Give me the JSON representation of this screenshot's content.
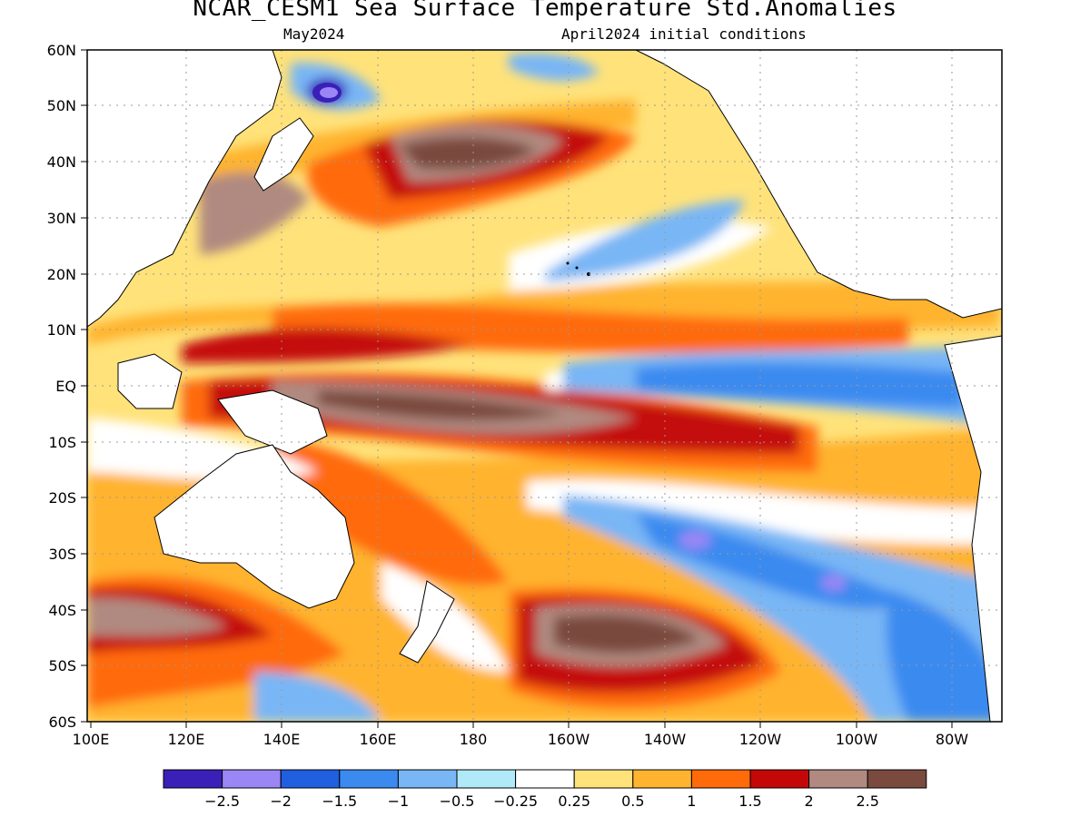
{
  "title": "NCAR_CESM1 Sea Surface Temperature Std.Anomalies",
  "subtitle_left": "May2024",
  "subtitle_right": "April2024 initial conditions",
  "lat_labels": [
    "60N",
    "50N",
    "40N",
    "30N",
    "20N",
    "10N",
    "EQ",
    "10S",
    "20S",
    "30S",
    "40S",
    "50S",
    "60S"
  ],
  "lon_labels": [
    "100E",
    "120E",
    "140E",
    "160E",
    "180",
    "160W",
    "140W",
    "120W",
    "100W",
    "80W"
  ],
  "colorbar": {
    "colors": [
      "#3a1fb8",
      "#9b86f5",
      "#1f5fe0",
      "#3a8af0",
      "#78b6f5",
      "#b0eaf8",
      "#ffffff",
      "#ffe27a",
      "#ffb32e",
      "#ff6a0a",
      "#c40808",
      "#b08a80",
      "#7a4a3e"
    ],
    "labels": [
      "−2.5",
      "−2",
      "−1.5",
      "−1",
      "−0.5",
      "−0.25",
      "0.25",
      "0.5",
      "1",
      "1.5",
      "2",
      "2.5"
    ]
  }
}
